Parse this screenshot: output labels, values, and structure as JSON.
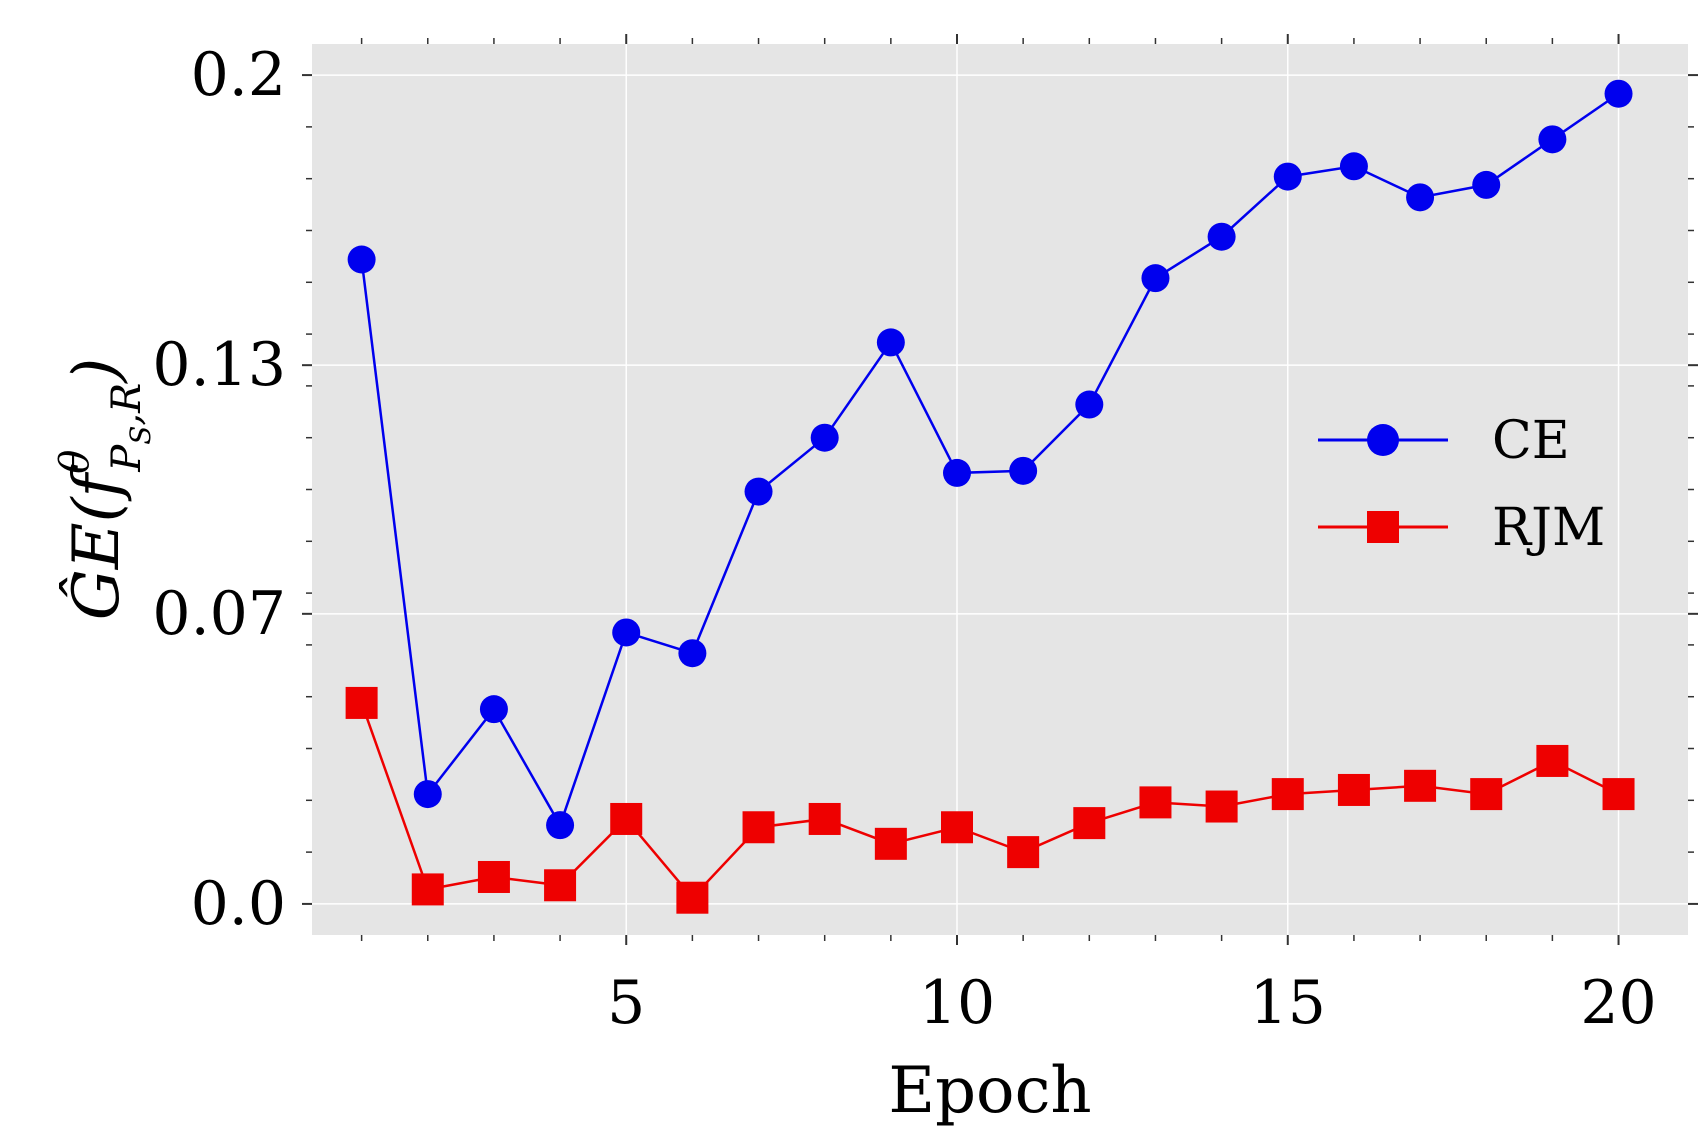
{
  "chart_data": {
    "type": "line",
    "title": "",
    "xlabel": "Epoch",
    "ylabel": "ĜE(f",
    "ylabel_superscript": "θ",
    "ylabel_subscript": "P",
    "ylabel_subsubscript": "S",
    "ylabel_subscript_tail": ",R",
    "ylabel_close": ")",
    "xlim": [
      0.25,
      21.05
    ],
    "ylim": [
      -0.0075,
      0.2075
    ],
    "xticks": [
      5,
      10,
      15,
      20
    ],
    "xtick_labels": [
      "5",
      "10",
      "15",
      "20"
    ],
    "yticks": [
      0.0,
      0.07,
      0.13,
      0.2
    ],
    "ytick_labels": [
      "0.0",
      "0.07",
      "0.13",
      "0.2"
    ],
    "grid": true,
    "legend_position": "center-right",
    "background": "#e5e5e5",
    "x": [
      1,
      2,
      3,
      4,
      5,
      6,
      7,
      8,
      9,
      10,
      11,
      12,
      13,
      14,
      15,
      16,
      17,
      18,
      19,
      20
    ],
    "series": [
      {
        "name": "CE",
        "color": "#0000ee",
        "marker": "circle",
        "values": [
          0.1555,
          0.0265,
          0.047,
          0.019,
          0.0655,
          0.0605,
          0.0995,
          0.1125,
          0.1355,
          0.104,
          0.1045,
          0.1205,
          0.151,
          0.161,
          0.1755,
          0.178,
          0.1705,
          0.1735,
          0.1845,
          0.1955
        ]
      },
      {
        "name": "RJM",
        "color": "#ee0000",
        "marker": "square",
        "values": [
          0.0485,
          0.0035,
          0.0065,
          0.0045,
          0.0205,
          0.0015,
          0.0185,
          0.0205,
          0.0145,
          0.0185,
          0.0125,
          0.0195,
          0.0245,
          0.0235,
          0.0265,
          0.0275,
          0.0285,
          0.0265,
          0.0345,
          0.0265
        ]
      }
    ]
  }
}
